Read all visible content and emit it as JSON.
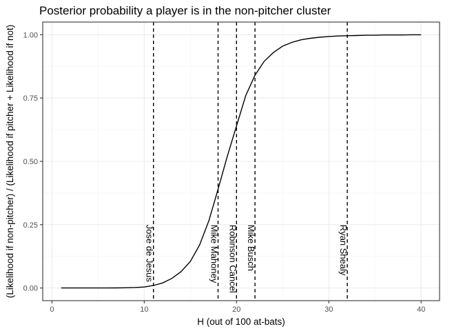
{
  "chart_data": {
    "type": "line",
    "title": "Posterior probability a player is in the non-pitcher cluster",
    "xlabel": "H (out of 100 at-bats)",
    "ylabel": "(Likelihood if non-pitcher) / (Likelihood if pitcher + Likelihood if not)",
    "xlim": [
      -1,
      42
    ],
    "ylim": [
      -0.05,
      1.05
    ],
    "x_ticks": [
      0,
      10,
      20,
      30,
      40
    ],
    "x_tick_labels": [
      "0",
      "10",
      "20",
      "30",
      "40"
    ],
    "y_ticks": [
      0,
      0.25,
      0.5,
      0.75,
      1
    ],
    "y_tick_labels": [
      "0.00",
      "0.25",
      "0.50",
      "0.75",
      "1.00"
    ],
    "grid": true,
    "series": [
      {
        "x": [
          1,
          2,
          3,
          4,
          5,
          6,
          7,
          8,
          9,
          10,
          11,
          12,
          13,
          14,
          15,
          16,
          17,
          18,
          19,
          20,
          21,
          22,
          23,
          24,
          25,
          26,
          27,
          28,
          29,
          30,
          31,
          32,
          33,
          34,
          35,
          36,
          37,
          38,
          39,
          40
        ],
        "values": [
          0,
          0,
          0,
          0,
          0,
          0,
          0.0005,
          0.001,
          0.002,
          0.004,
          0.01,
          0.02,
          0.038,
          0.065,
          0.105,
          0.17,
          0.265,
          0.39,
          0.52,
          0.64,
          0.76,
          0.84,
          0.895,
          0.93,
          0.955,
          0.97,
          0.98,
          0.986,
          0.99,
          0.993,
          0.995,
          0.996,
          0.997,
          0.998,
          0.998,
          0.999,
          0.999,
          0.999,
          1,
          1
        ]
      }
    ],
    "vlines": [
      {
        "x": 11,
        "label": "Jose de Jesus"
      },
      {
        "x": 18,
        "label": "Mike Mahoney"
      },
      {
        "x": 20,
        "label": "Robinson Cancel"
      },
      {
        "x": 22,
        "label": "Mike Busch"
      },
      {
        "x": 32,
        "label": "Ryan Shealy"
      }
    ]
  }
}
